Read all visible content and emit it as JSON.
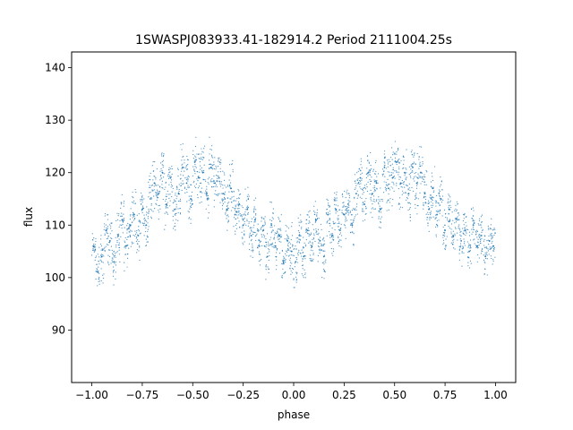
{
  "chart_data": {
    "type": "scatter",
    "title": "1SWASPJ083933.41-182914.2 Period 2111004.25s",
    "xlabel": "phase",
    "ylabel": "flux",
    "xlim": [
      -1.1,
      1.1
    ],
    "ylim": [
      80,
      143
    ],
    "xticks": [
      -1.0,
      -0.75,
      -0.5,
      -0.25,
      0.0,
      0.25,
      0.5,
      0.75,
      1.0
    ],
    "xtick_labels": [
      "−1.00",
      "−0.75",
      "−0.50",
      "−0.25",
      "0.00",
      "0.25",
      "0.50",
      "0.75",
      "1.00"
    ],
    "yticks": [
      90,
      100,
      110,
      120,
      130,
      140
    ],
    "ytick_labels": [
      "90",
      "100",
      "110",
      "120",
      "130",
      "140"
    ],
    "grid": false,
    "marker_color": "#1f77b4",
    "series": [
      {
        "x": [
          -0.99,
          -0.97,
          -0.95,
          -0.93,
          -0.91,
          -0.89,
          -0.87,
          -0.85,
          -0.83,
          -0.81,
          -0.79,
          -0.77,
          -0.75,
          -0.73,
          -0.71,
          -0.69,
          -0.67,
          -0.65,
          -0.63,
          -0.61,
          -0.59,
          -0.57,
          -0.55,
          -0.53,
          -0.51,
          -0.49,
          -0.47,
          -0.45,
          -0.43,
          -0.41,
          -0.39,
          -0.37,
          -0.35,
          -0.33,
          -0.31,
          -0.29,
          -0.27,
          -0.25,
          -0.23,
          -0.21,
          -0.19,
          -0.17,
          -0.15,
          -0.13,
          -0.11,
          -0.09,
          -0.07,
          -0.05,
          -0.03,
          -0.01,
          0.01,
          0.03,
          0.05,
          0.07,
          0.09,
          0.11,
          0.13,
          0.15,
          0.17,
          0.19,
          0.21,
          0.23,
          0.25,
          0.27,
          0.29,
          0.31,
          0.33,
          0.35,
          0.37,
          0.39,
          0.41,
          0.43,
          0.45,
          0.47,
          0.49,
          0.51,
          0.53,
          0.55,
          0.57,
          0.59,
          0.61,
          0.63,
          0.65,
          0.67,
          0.69,
          0.71,
          0.73,
          0.75,
          0.77,
          0.79,
          0.81,
          0.83,
          0.85,
          0.87,
          0.89,
          0.91,
          0.93,
          0.95,
          0.97,
          0.99
        ],
        "y": [
          106,
          101,
          104,
          109,
          107,
          103,
          108,
          111,
          106,
          110,
          112,
          108,
          113,
          110,
          115,
          118,
          116,
          120,
          114,
          119,
          113,
          116,
          121,
          118,
          115,
          122,
          119,
          120,
          116,
          121,
          118,
          119,
          116,
          113,
          117,
          112,
          114,
          110,
          113,
          108,
          111,
          106,
          109,
          104,
          110,
          106,
          108,
          103,
          107,
          105,
          103,
          108,
          104,
          109,
          106,
          111,
          107,
          104,
          112,
          108,
          113,
          109,
          112,
          114,
          110,
          116,
          119,
          114,
          120,
          116,
          118,
          113,
          121,
          117,
          119,
          122,
          118,
          120,
          116,
          121,
          118,
          120,
          116,
          113,
          117,
          112,
          115,
          109,
          113,
          108,
          111,
          107,
          109,
          105,
          110,
          106,
          108,
          104,
          107,
          106
        ],
        "spread": [
          4,
          6,
          6,
          5,
          6,
          5,
          6,
          5,
          6,
          5,
          6,
          5,
          6,
          5,
          6,
          6,
          6,
          6,
          6,
          6,
          5,
          6,
          6,
          6,
          5,
          6,
          6,
          6,
          5,
          6,
          6,
          6,
          5,
          5,
          6,
          5,
          5,
          5,
          5,
          5,
          5,
          5,
          5,
          5,
          5,
          5,
          5,
          5,
          5,
          6,
          6,
          5,
          5,
          5,
          5,
          5,
          5,
          5,
          5,
          5,
          5,
          5,
          5,
          5,
          5,
          6,
          6,
          5,
          6,
          6,
          6,
          5,
          6,
          6,
          6,
          6,
          6,
          6,
          6,
          6,
          6,
          6,
          6,
          5,
          6,
          5,
          5,
          5,
          5,
          5,
          5,
          5,
          5,
          5,
          5,
          5,
          5,
          5,
          5,
          4
        ]
      }
    ]
  }
}
